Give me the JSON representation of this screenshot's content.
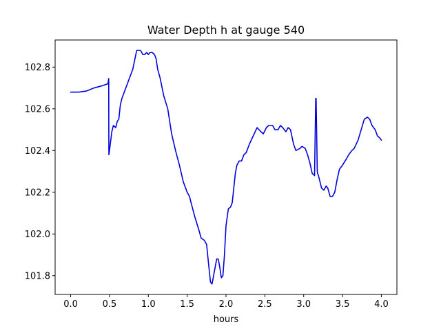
{
  "chart_data": {
    "type": "line",
    "title": "Water Depth h at gauge 540",
    "xlabel": "hours",
    "ylabel": "",
    "xlim": [
      -0.2,
      4.2
    ],
    "ylim": [
      101.71,
      102.93
    ],
    "x_ticks": [
      0.0,
      0.5,
      1.0,
      1.5,
      2.0,
      2.5,
      3.0,
      3.5,
      4.0
    ],
    "x_tick_labels": [
      "0.0",
      "0.5",
      "1.0",
      "1.5",
      "2.0",
      "2.5",
      "3.0",
      "3.5",
      "4.0"
    ],
    "y_ticks": [
      101.8,
      102.0,
      102.2,
      102.4,
      102.6,
      102.8
    ],
    "y_tick_labels": [
      "101.8",
      "102.0",
      "102.2",
      "102.4",
      "102.6",
      "102.8"
    ],
    "grid": false,
    "legend": "none",
    "series": [
      {
        "color": "#0000dd",
        "x": [
          0.0,
          0.1,
          0.2,
          0.3,
          0.4,
          0.48,
          0.49,
          0.492,
          0.5,
          0.53,
          0.55,
          0.58,
          0.6,
          0.62,
          0.64,
          0.66,
          0.68,
          0.7,
          0.72,
          0.75,
          0.8,
          0.85,
          0.9,
          0.93,
          0.95,
          0.98,
          1.0,
          1.02,
          1.05,
          1.08,
          1.1,
          1.12,
          1.15,
          1.2,
          1.25,
          1.3,
          1.35,
          1.4,
          1.45,
          1.5,
          1.53,
          1.55,
          1.6,
          1.65,
          1.68,
          1.72,
          1.75,
          1.78,
          1.8,
          1.82,
          1.84,
          1.86,
          1.88,
          1.9,
          1.92,
          1.94,
          1.96,
          1.98,
          2.0,
          2.03,
          2.06,
          2.08,
          2.1,
          2.12,
          2.14,
          2.17,
          2.2,
          2.23,
          2.26,
          2.3,
          2.35,
          2.4,
          2.45,
          2.48,
          2.52,
          2.55,
          2.6,
          2.63,
          2.67,
          2.7,
          2.73,
          2.77,
          2.8,
          2.83,
          2.87,
          2.9,
          2.95,
          2.98,
          3.02,
          3.05,
          3.08,
          3.11,
          3.14,
          3.155,
          3.16,
          3.175,
          3.18,
          3.19,
          3.21,
          3.23,
          3.26,
          3.29,
          3.31,
          3.34,
          3.37,
          3.4,
          3.43,
          3.46,
          3.5,
          3.55,
          3.58,
          3.62,
          3.65,
          3.7,
          3.74,
          3.78,
          3.82,
          3.85,
          3.88,
          3.92,
          3.95,
          3.98,
          4.0
        ],
        "y": [
          102.68,
          102.68,
          102.685,
          102.7,
          102.71,
          102.72,
          102.745,
          102.38,
          102.4,
          102.49,
          102.52,
          102.51,
          102.54,
          102.55,
          102.62,
          102.65,
          102.67,
          102.69,
          102.71,
          102.74,
          102.79,
          102.88,
          102.88,
          102.86,
          102.86,
          102.87,
          102.86,
          102.87,
          102.87,
          102.86,
          102.84,
          102.79,
          102.75,
          102.66,
          102.6,
          102.48,
          102.4,
          102.33,
          102.25,
          102.2,
          102.18,
          102.15,
          102.08,
          102.02,
          101.98,
          101.97,
          101.95,
          101.84,
          101.77,
          101.76,
          101.8,
          101.84,
          101.88,
          101.88,
          101.84,
          101.79,
          101.8,
          101.9,
          102.04,
          102.12,
          102.13,
          102.15,
          102.22,
          102.29,
          102.33,
          102.35,
          102.35,
          102.38,
          102.39,
          102.43,
          102.47,
          102.51,
          102.49,
          102.48,
          102.51,
          102.52,
          102.52,
          102.5,
          102.5,
          102.52,
          102.51,
          102.49,
          102.51,
          102.5,
          102.43,
          102.4,
          102.41,
          102.42,
          102.41,
          102.38,
          102.34,
          102.29,
          102.28,
          102.65,
          102.65,
          102.3,
          102.29,
          102.28,
          102.25,
          102.22,
          102.21,
          102.23,
          102.22,
          102.18,
          102.18,
          102.2,
          102.26,
          102.31,
          102.33,
          102.36,
          102.38,
          102.4,
          102.41,
          102.45,
          102.5,
          102.55,
          102.56,
          102.55,
          102.52,
          102.5,
          102.47,
          102.46,
          102.45
        ]
      }
    ]
  }
}
